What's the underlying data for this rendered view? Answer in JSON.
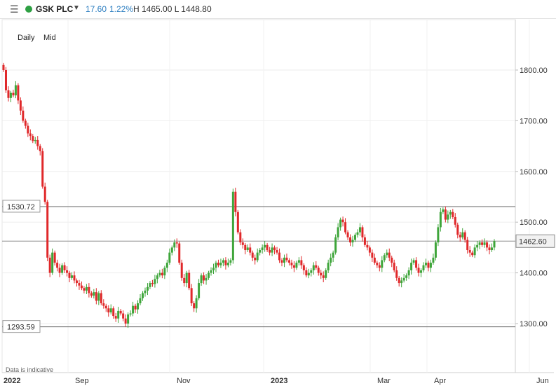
{
  "header": {
    "menu_glyph": "☰",
    "symbol": "GSK PLC",
    "status_color": "#2ea043",
    "caret": "▼",
    "change": "17.60",
    "change_pct": "1.22%",
    "high_low": "H 1465.00 L 1448.80",
    "accent": "#2e7fc1"
  },
  "modes": {
    "interval": "Daily",
    "price_type": "Mid"
  },
  "footnote": "Data is indicative",
  "levels": {
    "upper": "1530.72",
    "lower": "1293.59",
    "current": "1462.60"
  },
  "chart_data": {
    "type": "candlestick",
    "y_ticks": [
      "1800.00",
      "1700.00",
      "1600.00",
      "1500.00",
      "1400.00",
      "1300.00"
    ],
    "y_tick_values": [
      1800,
      1700,
      1600,
      1500,
      1400,
      1300
    ],
    "x_ticks": [
      "2022",
      "Sep",
      "Nov",
      "2023",
      "Mar",
      "Apr",
      "Jun"
    ],
    "x_tick_bold": [
      "2022",
      "2023"
    ],
    "up_color": "#3ea53a",
    "down_color": "#e0282a",
    "current_price": 1462.6,
    "upper_level": 1530.72,
    "lower_level": 1293.59,
    "closes": [
      1800,
      1760,
      1745,
      1755,
      1750,
      1770,
      1740,
      1720,
      1700,
      1690,
      1675,
      1670,
      1660,
      1662,
      1650,
      1640,
      1570,
      1540,
      1430,
      1400,
      1440,
      1420,
      1410,
      1400,
      1415,
      1405,
      1400,
      1390,
      1395,
      1385,
      1380,
      1375,
      1370,
      1365,
      1372,
      1360,
      1355,
      1362,
      1345,
      1360,
      1340,
      1335,
      1330,
      1322,
      1330,
      1315,
      1310,
      1325,
      1320,
      1310,
      1300,
      1318,
      1320,
      1335,
      1328,
      1340,
      1350,
      1360,
      1365,
      1372,
      1380,
      1378,
      1388,
      1395,
      1400,
      1395,
      1410,
      1420,
      1440,
      1450,
      1460,
      1458,
      1420,
      1390,
      1380,
      1400,
      1370,
      1340,
      1330,
      1350,
      1380,
      1395,
      1385,
      1390,
      1400,
      1405,
      1410,
      1420,
      1415,
      1420,
      1425,
      1415,
      1420,
      1425,
      1560,
      1520,
      1480,
      1460,
      1455,
      1445,
      1450,
      1440,
      1430,
      1425,
      1440,
      1445,
      1450,
      1455,
      1445,
      1440,
      1450,
      1445,
      1440,
      1425,
      1420,
      1430,
      1425,
      1420,
      1415,
      1410,
      1420,
      1425,
      1415,
      1405,
      1395,
      1400,
      1405,
      1415,
      1410,
      1400,
      1395,
      1390,
      1405,
      1420,
      1430,
      1440,
      1470,
      1490,
      1505,
      1500,
      1480,
      1470,
      1460,
      1465,
      1475,
      1480,
      1490,
      1470,
      1455,
      1450,
      1440,
      1430,
      1420,
      1415,
      1410,
      1425,
      1435,
      1440,
      1430,
      1420,
      1405,
      1390,
      1380,
      1385,
      1390,
      1395,
      1405,
      1420,
      1425,
      1410,
      1400,
      1405,
      1415,
      1420,
      1410,
      1420,
      1430,
      1460,
      1490,
      1520,
      1525,
      1505,
      1515,
      1520,
      1510,
      1495,
      1475,
      1470,
      1480,
      1465,
      1445,
      1440,
      1435,
      1450,
      1455,
      1460,
      1455,
      1460,
      1450,
      1445,
      1450,
      1462.6
    ]
  }
}
